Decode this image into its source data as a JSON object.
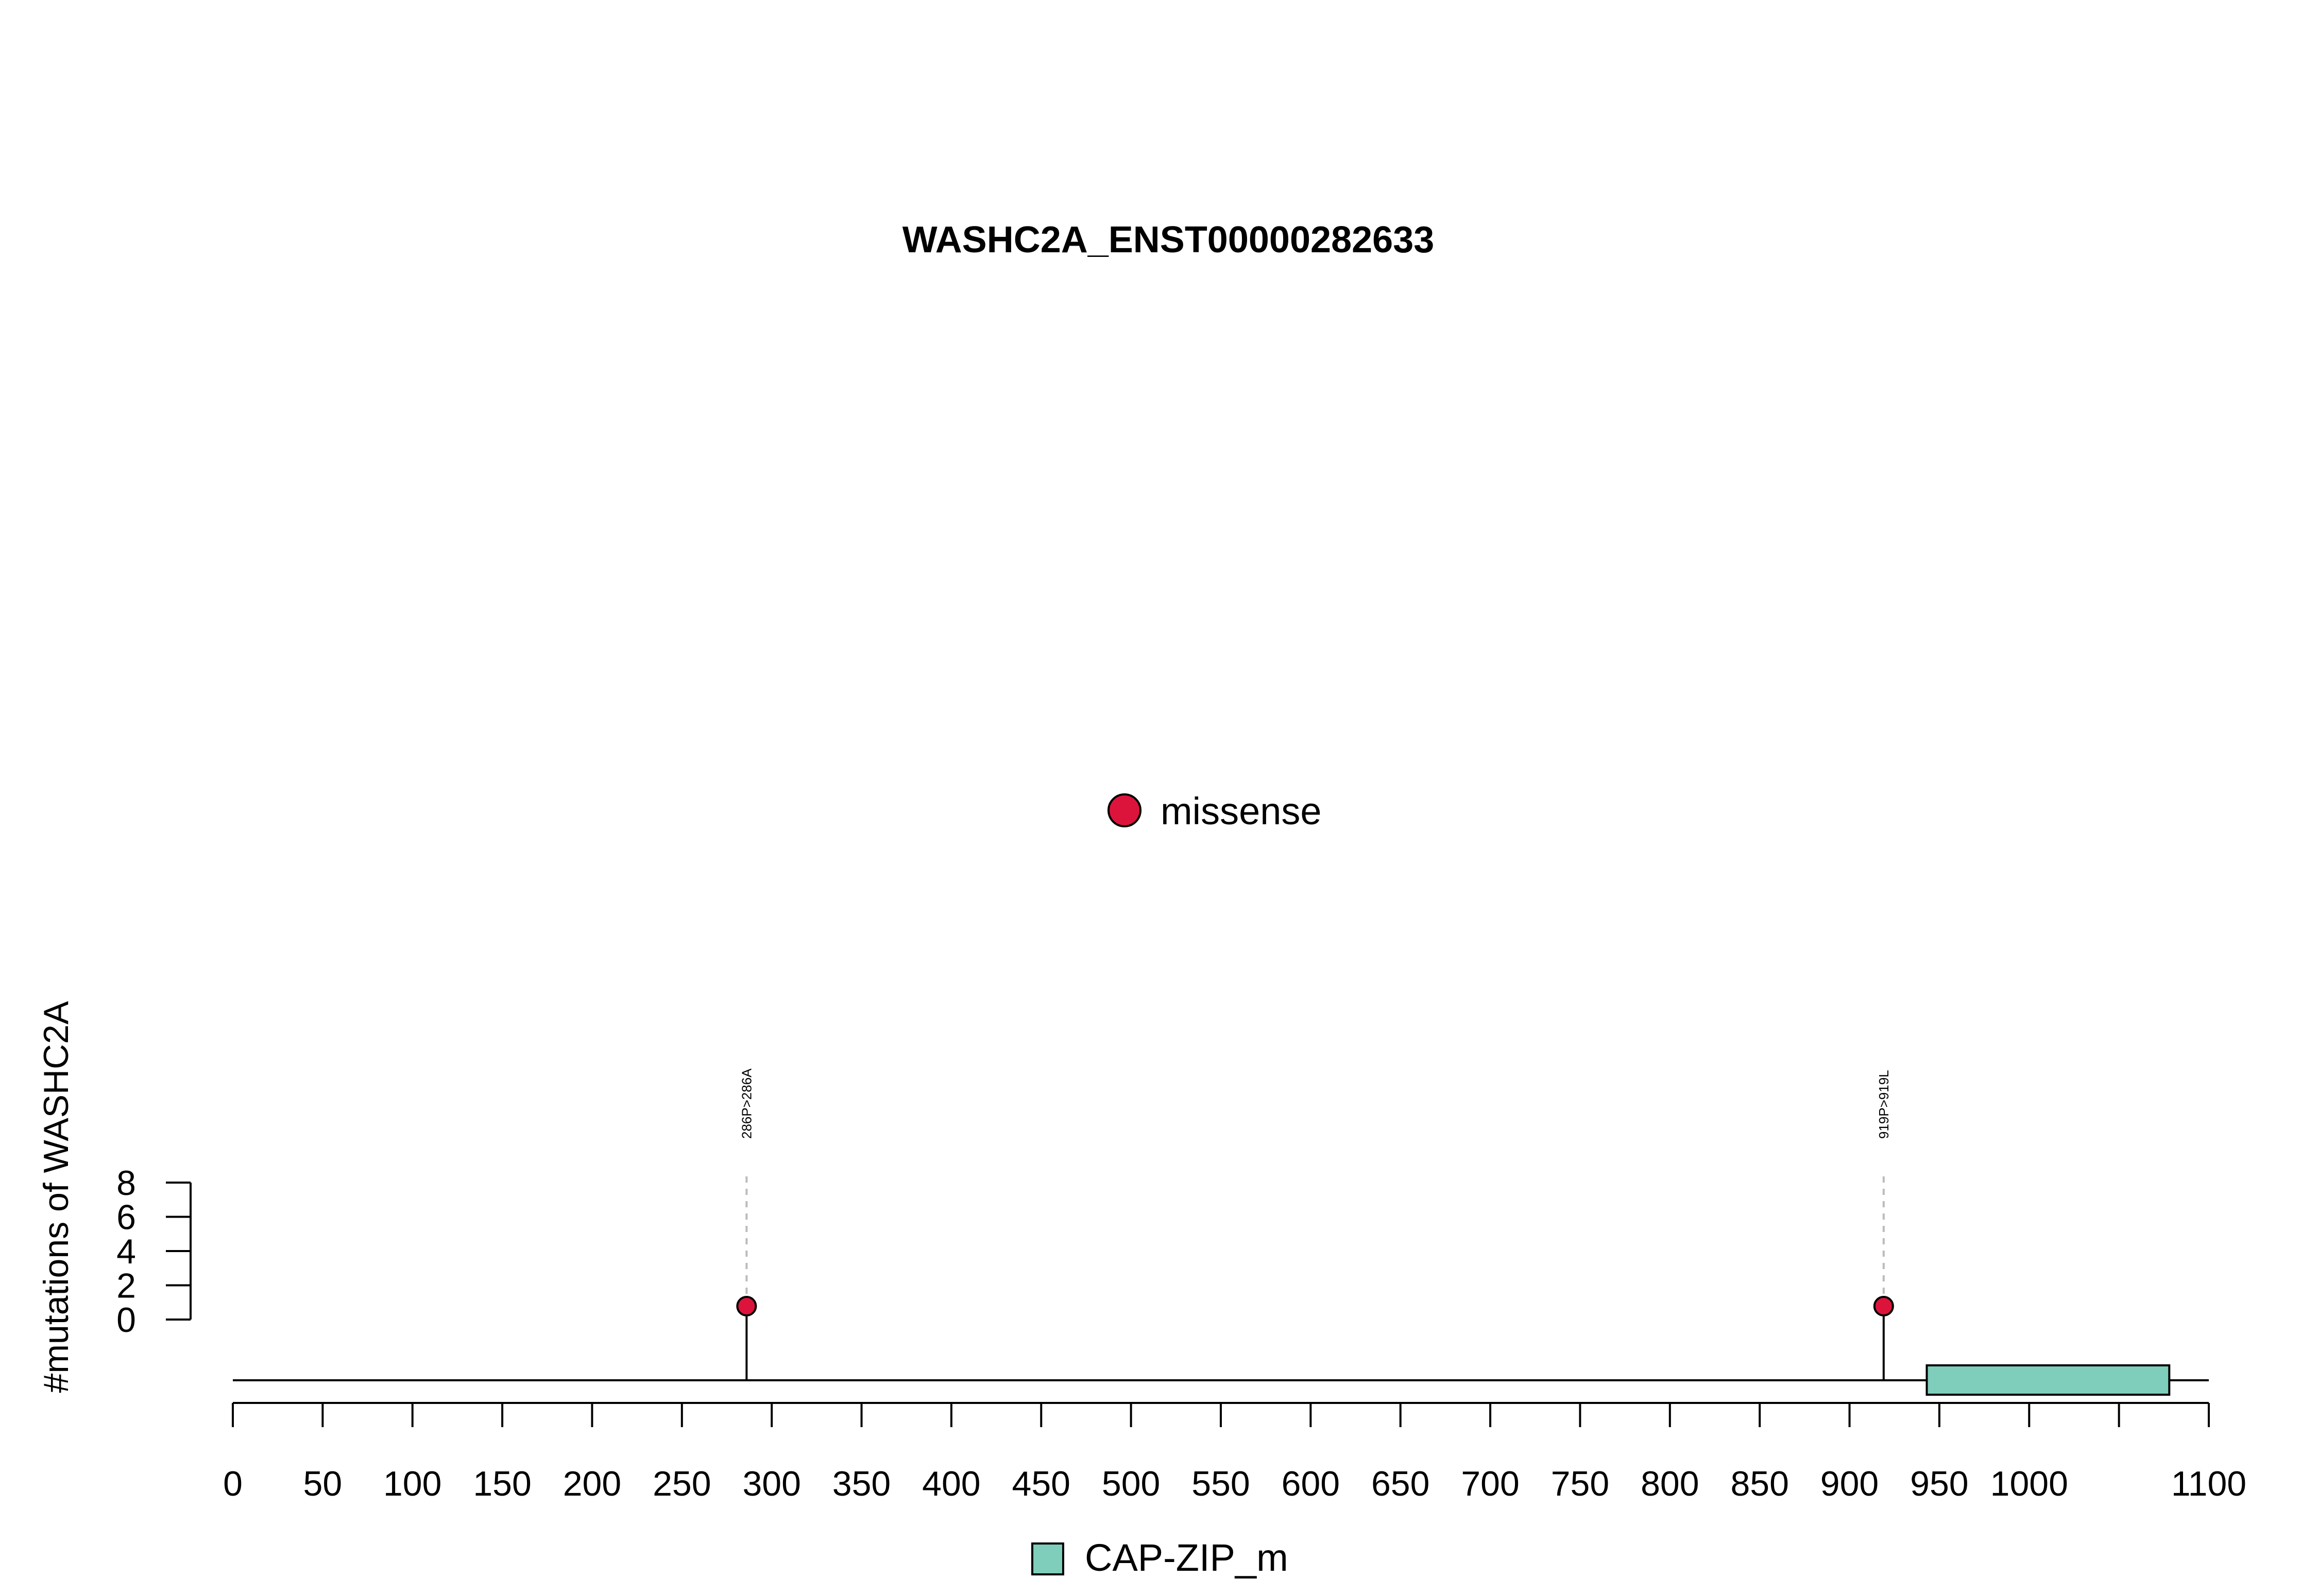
{
  "chart_data": {
    "type": "lollipop",
    "title": "WASHC2A_ENST00000282633",
    "ylabel": "#mutations of WASHC2A",
    "y_ticks": [
      0,
      2,
      4,
      6,
      8
    ],
    "ylim": [
      0,
      8
    ],
    "x_ticks": [
      0,
      50,
      100,
      150,
      200,
      250,
      300,
      350,
      400,
      450,
      500,
      550,
      600,
      650,
      700,
      750,
      800,
      850,
      900,
      950,
      1000,
      1100
    ],
    "xlim": [
      0,
      1100
    ],
    "protein_length": 1100,
    "mutation_legend": [
      {
        "label": "missense",
        "color": "#DC143C"
      }
    ],
    "mutations": [
      {
        "position": 286,
        "label": "286P>286A",
        "count": 1,
        "type": "missense",
        "color": "#DC143C"
      },
      {
        "position": 919,
        "label": "919P>919L",
        "count": 1,
        "type": "missense",
        "color": "#DC143C"
      }
    ],
    "domains": [
      {
        "name": "CAP-ZIP_m",
        "start": 943,
        "end": 1078,
        "color": "#7FCDBB"
      }
    ],
    "domain_legend": [
      {
        "label": "CAP-ZIP_m",
        "color": "#7FCDBB"
      }
    ]
  }
}
